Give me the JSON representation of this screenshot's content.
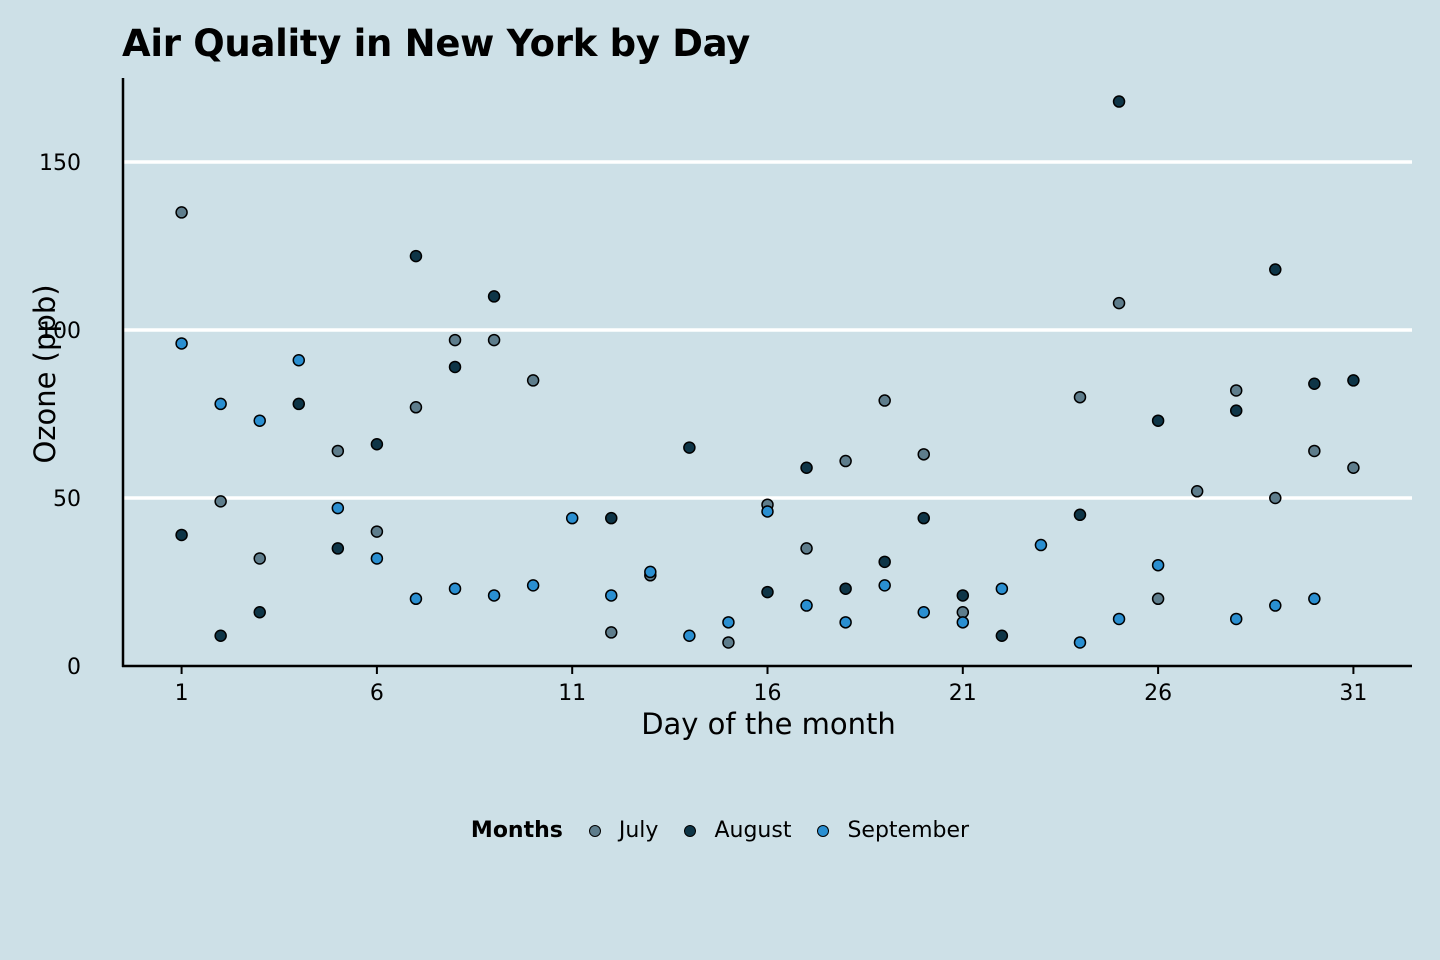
{
  "chart_data": {
    "type": "scatter",
    "title": "Air Quality in New York by Day",
    "xlabel": "Day of the month",
    "ylabel": "Ozone (ppb)",
    "xlim": [
      -0.5,
      32.5
    ],
    "ylim": [
      0,
      175
    ],
    "x_ticks": [
      1,
      6,
      11,
      16,
      21,
      26,
      31
    ],
    "y_ticks": [
      0,
      50,
      100,
      150
    ],
    "grid": "horizontal",
    "legend": {
      "title": "Months",
      "placement": "bottom",
      "entries": [
        "July",
        "August",
        "September"
      ]
    },
    "series": [
      {
        "name": "July",
        "color": "#5e7d8c",
        "points": [
          [
            1,
            135
          ],
          [
            2,
            49
          ],
          [
            3,
            32
          ],
          [
            5,
            64
          ],
          [
            6,
            40
          ],
          [
            7,
            77
          ],
          [
            8,
            97
          ],
          [
            9,
            97
          ],
          [
            10,
            85
          ],
          [
            12,
            10
          ],
          [
            13,
            27
          ],
          [
            15,
            7
          ],
          [
            16,
            48
          ],
          [
            17,
            35
          ],
          [
            18,
            61
          ],
          [
            19,
            79
          ],
          [
            20,
            63
          ],
          [
            21,
            16
          ],
          [
            24,
            80
          ],
          [
            25,
            108
          ],
          [
            26,
            20
          ],
          [
            27,
            52
          ],
          [
            28,
            82
          ],
          [
            29,
            50
          ],
          [
            30,
            64
          ],
          [
            31,
            59
          ]
        ]
      },
      {
        "name": "August",
        "color": "#0e3547",
        "points": [
          [
            1,
            39
          ],
          [
            2,
            9
          ],
          [
            3,
            16
          ],
          [
            4,
            78
          ],
          [
            5,
            35
          ],
          [
            6,
            66
          ],
          [
            7,
            122
          ],
          [
            8,
            89
          ],
          [
            9,
            110
          ],
          [
            12,
            44
          ],
          [
            14,
            65
          ],
          [
            16,
            22
          ],
          [
            17,
            59
          ],
          [
            18,
            23
          ],
          [
            19,
            31
          ],
          [
            20,
            44
          ],
          [
            21,
            21
          ],
          [
            22,
            9
          ],
          [
            24,
            45
          ],
          [
            25,
            168
          ],
          [
            26,
            73
          ],
          [
            28,
            76
          ],
          [
            29,
            118
          ],
          [
            30,
            84
          ],
          [
            31,
            85
          ]
        ]
      },
      {
        "name": "September",
        "color": "#2a8fd1",
        "points": [
          [
            1,
            96
          ],
          [
            2,
            78
          ],
          [
            3,
            73
          ],
          [
            4,
            91
          ],
          [
            5,
            47
          ],
          [
            6,
            32
          ],
          [
            7,
            20
          ],
          [
            8,
            23
          ],
          [
            9,
            21
          ],
          [
            10,
            24
          ],
          [
            11,
            44
          ],
          [
            12,
            21
          ],
          [
            13,
            28
          ],
          [
            14,
            9
          ],
          [
            15,
            13
          ],
          [
            16,
            46
          ],
          [
            17,
            18
          ],
          [
            18,
            13
          ],
          [
            19,
            24
          ],
          [
            20,
            16
          ],
          [
            21,
            13
          ],
          [
            22,
            23
          ],
          [
            23,
            36
          ],
          [
            24,
            7
          ],
          [
            25,
            14
          ],
          [
            26,
            30
          ],
          [
            28,
            14
          ],
          [
            29,
            18
          ],
          [
            30,
            20
          ]
        ]
      }
    ]
  }
}
